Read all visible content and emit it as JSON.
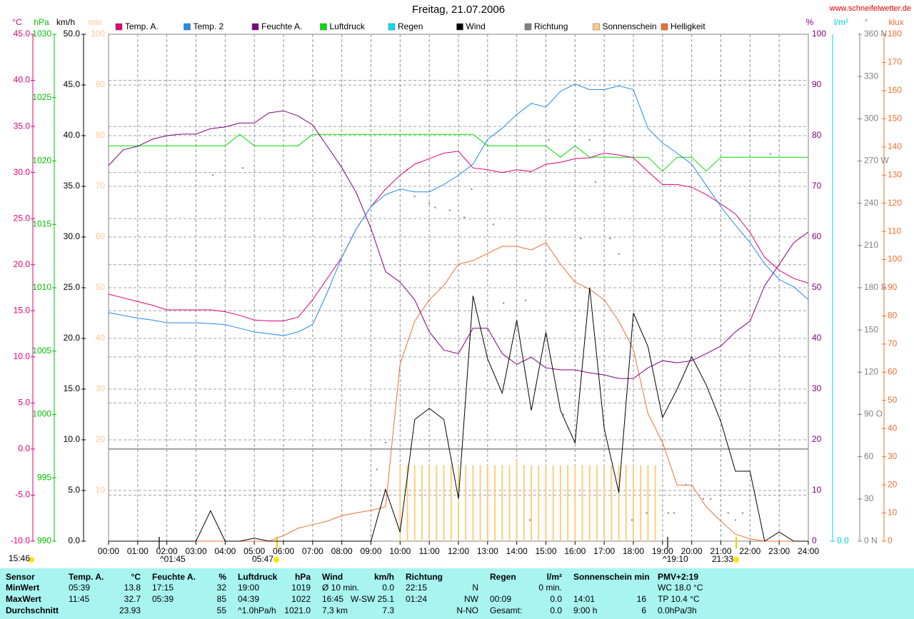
{
  "chart_data": {
    "type": "line",
    "title": "Freitag, 21.07.2006",
    "source": "www.schneifelwetter.de",
    "x": [
      0,
      0.5,
      1,
      1.5,
      2,
      2.5,
      3,
      3.5,
      4,
      4.5,
      5,
      5.5,
      6,
      6.5,
      7,
      7.5,
      8,
      8.5,
      9,
      9.5,
      10,
      10.5,
      11,
      11.5,
      12,
      12.5,
      13,
      13.5,
      14,
      14.5,
      15,
      15.5,
      16,
      16.5,
      17,
      17.5,
      18,
      18.5,
      19,
      19.5,
      20,
      20.5,
      21,
      21.5,
      22,
      22.5,
      23,
      23.5,
      24
    ],
    "xlim": [
      0,
      24
    ],
    "xticks": [
      {
        "value": 0,
        "label": "00:00"
      },
      {
        "value": 1,
        "label": "01:00"
      },
      {
        "value": 2,
        "label": "02:00"
      },
      {
        "value": 3,
        "label": "03:00"
      },
      {
        "value": 4,
        "label": "04:00"
      },
      {
        "value": 5,
        "label": "05:00"
      },
      {
        "value": 6,
        "label": "06:00"
      },
      {
        "value": 7,
        "label": "07:00"
      },
      {
        "value": 8,
        "label": "08:00"
      },
      {
        "value": 9,
        "label": "09:00"
      },
      {
        "value": 10,
        "label": "10:00"
      },
      {
        "value": 11,
        "label": "11:00"
      },
      {
        "value": 12,
        "label": "12:00"
      },
      {
        "value": 13,
        "label": "13:00"
      },
      {
        "value": 14,
        "label": "14:00"
      },
      {
        "value": 15,
        "label": "15:00"
      },
      {
        "value": 16,
        "label": "16:00"
      },
      {
        "value": 17,
        "label": "17:00"
      },
      {
        "value": 18,
        "label": "18:00"
      },
      {
        "value": 19,
        "label": "19:00"
      },
      {
        "value": 20,
        "label": "20:00"
      },
      {
        "value": 21,
        "label": "21:00"
      },
      {
        "value": 22,
        "label": "22:00"
      },
      {
        "value": 23,
        "label": "23:00"
      },
      {
        "value": 24,
        "label": "24:00"
      }
    ],
    "grid": true,
    "axes": {
      "temp": {
        "label": "°C",
        "color": "#e0007a",
        "lim": [
          -10,
          45
        ],
        "ticks": [
          {
            "value": -10,
            "label": "-10.0"
          },
          {
            "value": -5,
            "label": "-5.0"
          },
          {
            "value": 0,
            "label": "0.0"
          },
          {
            "value": 5,
            "label": "5.0"
          },
          {
            "value": 10,
            "label": "10.0"
          },
          {
            "value": 15,
            "label": "15.0"
          },
          {
            "value": 20,
            "label": "20.0"
          },
          {
            "value": 25,
            "label": "25.0"
          },
          {
            "value": 30,
            "label": "30.0"
          },
          {
            "value": 35,
            "label": "35.0"
          },
          {
            "value": 40,
            "label": "40.0"
          },
          {
            "value": 45,
            "label": "45.0"
          }
        ]
      },
      "pressure": {
        "label": "hPa",
        "color": "#00c000",
        "lim": [
          990,
          1030
        ],
        "ticks": [
          990,
          995,
          1000,
          1005,
          1010,
          1015,
          1020,
          1025,
          1030
        ]
      },
      "wind": {
        "label": "km/h",
        "color": "#000000",
        "lim": [
          0,
          50
        ],
        "ticks": [
          {
            "value": 0,
            "label": "0.0"
          },
          {
            "value": 5,
            "label": "5.0"
          },
          {
            "value": 10,
            "label": "10.0"
          },
          {
            "value": 15,
            "label": "15.0"
          },
          {
            "value": 20,
            "label": "20.0"
          },
          {
            "value": 25,
            "label": "25.0"
          },
          {
            "value": 30,
            "label": "30.0"
          },
          {
            "value": 35,
            "label": "35.0"
          },
          {
            "value": 40,
            "label": "40.0"
          },
          {
            "value": 45,
            "label": "45.0"
          },
          {
            "value": 50,
            "label": "50.0"
          }
        ]
      },
      "sun": {
        "label": "min",
        "color": "#ffc890",
        "lim": [
          0,
          100
        ],
        "ticks": [
          10,
          20,
          30,
          40,
          50,
          60,
          70,
          80,
          90,
          100
        ]
      },
      "humidity": {
        "label": "%",
        "color": "#800080",
        "lim": [
          0,
          100
        ],
        "ticks": [
          0,
          10,
          20,
          30,
          40,
          50,
          60,
          70,
          80,
          90,
          100
        ]
      },
      "rain": {
        "label": "l/m²",
        "color": "#00d0e0",
        "ticks": [
          {
            "value": 0,
            "label": "0.0"
          }
        ]
      },
      "direction": {
        "label": "°",
        "color": "#808080",
        "lim": [
          0,
          360
        ],
        "ticks": [
          {
            "value": 0,
            "label": "0 N"
          },
          30,
          60,
          {
            "value": 90,
            "label": "90 O"
          },
          120,
          150,
          {
            "value": 180,
            "label": "180 S"
          },
          210,
          240,
          {
            "value": 270,
            "label": "270 W"
          },
          300,
          330,
          {
            "value": 360,
            "label": "360 N"
          }
        ]
      },
      "light": {
        "label": "klux",
        "color": "#f07030",
        "lim": [
          0,
          180
        ],
        "ticks": [
          0,
          10,
          20,
          30,
          40,
          50,
          60,
          70,
          80,
          90,
          100,
          110,
          120,
          130,
          140,
          150,
          160,
          170,
          180
        ]
      }
    },
    "series": [
      {
        "name": "Temp. A.",
        "color": "#e0007a",
        "axis": "temp",
        "values": [
          16.8,
          16.4,
          16.0,
          15.6,
          15.1,
          15.1,
          15.1,
          15.1,
          14.9,
          14.5,
          14.0,
          13.9,
          13.9,
          14.3,
          16.2,
          18.5,
          20.8,
          23.9,
          26.3,
          28.2,
          29.7,
          30.9,
          31.5,
          32.1,
          32.3,
          30.5,
          30.3,
          30.0,
          30.3,
          30.1,
          30.9,
          31.1,
          31.5,
          31.6,
          32.1,
          31.9,
          31.6,
          30.1,
          28.7,
          28.7,
          28.4,
          27.6,
          26.6,
          25.5,
          23.5,
          20.8,
          19.4,
          18.5,
          18.0
        ]
      },
      {
        "name": "Temp. 2",
        "color": "#1e8cf0",
        "axis": "temp",
        "values": [
          14.8,
          14.5,
          14.2,
          14.0,
          13.7,
          13.7,
          13.7,
          13.6,
          13.5,
          13.1,
          12.7,
          12.5,
          12.3,
          12.7,
          13.5,
          17.0,
          20.8,
          23.9,
          26.3,
          27.6,
          28.2,
          27.9,
          27.9,
          28.7,
          29.7,
          30.9,
          33.6,
          34.8,
          36.3,
          37.5,
          37.1,
          38.8,
          39.6,
          39.0,
          39.0,
          39.4,
          39.0,
          34.8,
          33.2,
          32.1,
          30.9,
          28.6,
          26.3,
          24.3,
          22.4,
          20.1,
          18.4,
          17.6,
          16.2
        ]
      },
      {
        "name": "Feuchte A.",
        "color": "#800080",
        "axis": "humidity",
        "values": [
          74.1,
          77.2,
          77.9,
          79.3,
          80.0,
          80.3,
          80.3,
          81.4,
          81.7,
          82.5,
          82.5,
          84.5,
          84.9,
          83.9,
          82.1,
          77.9,
          73.7,
          68.7,
          61.7,
          53.2,
          51.1,
          47.6,
          41.3,
          37.7,
          37.0,
          42.0,
          42.0,
          37.0,
          34.9,
          36.3,
          34.2,
          33.8,
          33.8,
          33.2,
          32.8,
          32.1,
          32.1,
          34.2,
          35.6,
          35.2,
          35.6,
          37.0,
          38.5,
          41.3,
          43.4,
          50.4,
          54.6,
          58.9,
          61.0
        ]
      },
      {
        "name": "Luftdruck",
        "color": "#00e000",
        "axis": "pressure",
        "values": [
          1021.2,
          1021.2,
          1021.2,
          1021.2,
          1021.2,
          1021.2,
          1021.2,
          1021.2,
          1021.2,
          1022.1,
          1021.2,
          1021.2,
          1021.2,
          1021.2,
          1022.1,
          1022.1,
          1022.1,
          1022.1,
          1022.1,
          1022.1,
          1022.1,
          1022.1,
          1022.1,
          1022.1,
          1022.1,
          1022.1,
          1021.2,
          1021.2,
          1021.2,
          1021.2,
          1021.2,
          1020.3,
          1021.2,
          1020.3,
          1020.3,
          1020.3,
          1020.3,
          1020.3,
          1019.2,
          1020.3,
          1020.3,
          1019.2,
          1020.3,
          1020.3,
          1020.3,
          1020.3,
          1020.3,
          1020.3,
          1020.3
        ]
      },
      {
        "name": "Regen",
        "color": "#00e0f0",
        "axis": "rain"
      },
      {
        "name": "Wind",
        "color": "#000000",
        "axis": "wind",
        "values": [
          0,
          0,
          0,
          0,
          0,
          0,
          0,
          3.0,
          0,
          0,
          0.3,
          0,
          0,
          0,
          0,
          0,
          0,
          0,
          0,
          5.1,
          0.9,
          12.0,
          13.1,
          12.0,
          4.2,
          24.2,
          18.0,
          14.6,
          21.8,
          12.9,
          20.6,
          12.9,
          9.7,
          25.0,
          11.1,
          4.8,
          22.5,
          19.2,
          12.2,
          15.0,
          18.2,
          15.4,
          11.8,
          6.9,
          6.9,
          0,
          0.9,
          0,
          0
        ]
      },
      {
        "name": "Richtung",
        "color": "#808080",
        "axis": "direction",
        "x": [
          3.58,
          4.6,
          9.2,
          9.5,
          10.24,
          10.5,
          11,
          11.2,
          11.7,
          12.2,
          12.45,
          13.2,
          13.55,
          14.3,
          14.45,
          15.1,
          15.6,
          16.2,
          16.5,
          16.7,
          17.2,
          17.5,
          17.95,
          18.45,
          19.2,
          19.4,
          19.8,
          20.4,
          20.65,
          21.25,
          21.5,
          21.75,
          22.7
        ],
        "values": [
          260,
          265,
          51,
          70,
          264,
          245,
          240,
          237,
          235,
          230,
          250,
          225,
          169,
          171,
          15,
          285,
          90,
          215,
          285,
          255,
          215,
          204,
          15,
          20,
          20,
          20,
          40,
          30,
          30,
          20,
          15,
          20,
          275
        ]
      },
      {
        "name": "Sonnenschein",
        "color": "#ffcc80",
        "axis": "sun",
        "x": [
          10,
          10.25,
          10.5,
          10.75,
          11,
          11.25,
          11.5,
          11.75,
          12,
          12.25,
          12.5,
          12.75,
          13,
          13.25,
          13.5,
          13.75,
          14,
          14.25,
          14.5,
          14.75,
          15,
          15.25,
          15.5,
          15.75,
          16,
          16.25,
          16.5,
          16.75,
          17,
          17.25,
          17.5,
          17.75,
          18,
          18.25,
          18.5,
          18.75
        ],
        "values": [
          15,
          15,
          15,
          15,
          15,
          15,
          15,
          15,
          15,
          15,
          15,
          15,
          15,
          15,
          15,
          15,
          16,
          15,
          15,
          15,
          15,
          15,
          15,
          15,
          15,
          15,
          15,
          15,
          15,
          15,
          15,
          15,
          15,
          15,
          15,
          15
        ]
      },
      {
        "name": "Helligkeit",
        "color": "#f07030",
        "axis": "light",
        "values": [
          0,
          0,
          0,
          0,
          0,
          0,
          0,
          0,
          0,
          0,
          0,
          0,
          2.0,
          4.6,
          5.9,
          7.1,
          9.1,
          10.1,
          10.9,
          12.2,
          62.9,
          78.1,
          85.7,
          90.8,
          98.4,
          99.6,
          102.2,
          104.7,
          104.7,
          103.4,
          106.0,
          98.4,
          92.0,
          89.5,
          85.7,
          78.1,
          68.1,
          45.3,
          35.1,
          19.9,
          19.9,
          12.2,
          7.1,
          2.5,
          0.8,
          0,
          0,
          0,
          0
        ]
      }
    ],
    "annotations": [
      "15:46",
      "^01:45",
      "05:47",
      "^19:10",
      "21:33"
    ]
  },
  "stats": {
    "groups": [
      {
        "head": [
          "Sensor"
        ],
        "rows": [
          [
            "MinWert"
          ],
          [
            "MaxWert"
          ],
          [
            "Durchschnitt"
          ]
        ]
      },
      {
        "head": [
          "Temp. A.",
          "°C"
        ],
        "rows": [
          [
            "05:39",
            "13.8"
          ],
          [
            "11:45",
            "32.7"
          ],
          [
            "23.93"
          ]
        ]
      },
      {
        "head": [
          "Feuchte A.",
          "%"
        ],
        "rows": [
          [
            "17:15",
            "32"
          ],
          [
            "05:39",
            "85"
          ],
          [
            "55"
          ]
        ]
      },
      {
        "head": [
          "Luftdruck",
          "hPa"
        ],
        "rows": [
          [
            "19:00",
            "1019"
          ],
          [
            "04:39",
            "1022"
          ],
          [
            "^1.0hPa/h",
            "1021.0"
          ]
        ]
      },
      {
        "head": [
          "Wind",
          "km/h"
        ],
        "rows": [
          [
            "Ø 10 min.",
            "0.0"
          ],
          [
            "16:45",
            "W-SW 25.1"
          ],
          [
            "7,3 km",
            "7.3"
          ]
        ]
      },
      {
        "head": [
          "Richtung"
        ],
        "rows": [
          [
            "22:15",
            "N"
          ],
          [
            "01:24",
            "NW"
          ],
          [
            "N-NO"
          ]
        ]
      },
      {
        "head": [
          "Regen",
          "l/m²"
        ],
        "rows": [
          [
            "0 min."
          ],
          [
            "00:09",
            "0.0"
          ],
          [
            "Gesamt:",
            "0.0"
          ]
        ]
      },
      {
        "head": [
          "Sonnenschein min"
        ],
        "rows": [
          [],
          [
            "14:01",
            "16"
          ],
          [
            "9:00 h",
            "6"
          ]
        ]
      },
      {
        "head": [
          "PMV+2:19"
        ],
        "rows": [
          [
            "WC 18.0 °C"
          ],
          [
            "TP 10.4 °C"
          ],
          [
            "0.0hPa/3h"
          ]
        ]
      }
    ]
  }
}
